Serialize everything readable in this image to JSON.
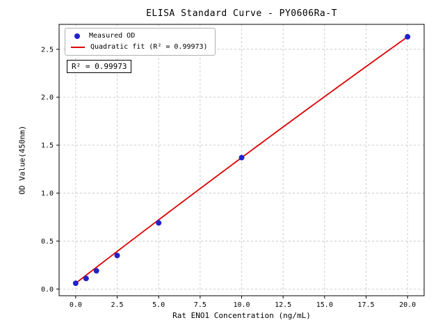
{
  "chart_data": {
    "type": "scatter",
    "title": "ELISA Standard Curve - PY0606Ra-T",
    "xlabel": "Rat ENO1 Concentration (ng/mL)",
    "ylabel": "OD Value(450nm)",
    "xlim": [
      -1,
      21
    ],
    "ylim": [
      -0.07,
      2.76
    ],
    "x_ticks": [
      0.0,
      2.5,
      5.0,
      7.5,
      10.0,
      12.5,
      15.0,
      17.5,
      20.0
    ],
    "y_ticks": [
      0.0,
      0.5,
      1.0,
      1.5,
      2.0,
      2.5
    ],
    "grid": true,
    "grid_style": "dashed",
    "legend_position": "upper left",
    "annotation": "R² = 0.99973",
    "colors": {
      "points": "#2222cc",
      "fit_line": "#dd0000",
      "grid": "#c0c0c0",
      "axis": "#000000",
      "background": "#ffffff"
    },
    "series": [
      {
        "name": "Measured OD",
        "type": "scatter",
        "color": "#2222cc",
        "x": [
          0,
          0.625,
          1.25,
          2.5,
          5,
          10,
          20
        ],
        "y": [
          0.06,
          0.11,
          0.19,
          0.35,
          0.69,
          1.37,
          2.63
        ]
      },
      {
        "name": "Quadratic fit (R² = 0.99973)",
        "type": "line",
        "color": "#dd0000",
        "fit": {
          "kind": "quadratic",
          "a": -0.00025,
          "b": 0.1335,
          "c": 0.06,
          "x_range": [
            0,
            20
          ]
        }
      }
    ]
  }
}
